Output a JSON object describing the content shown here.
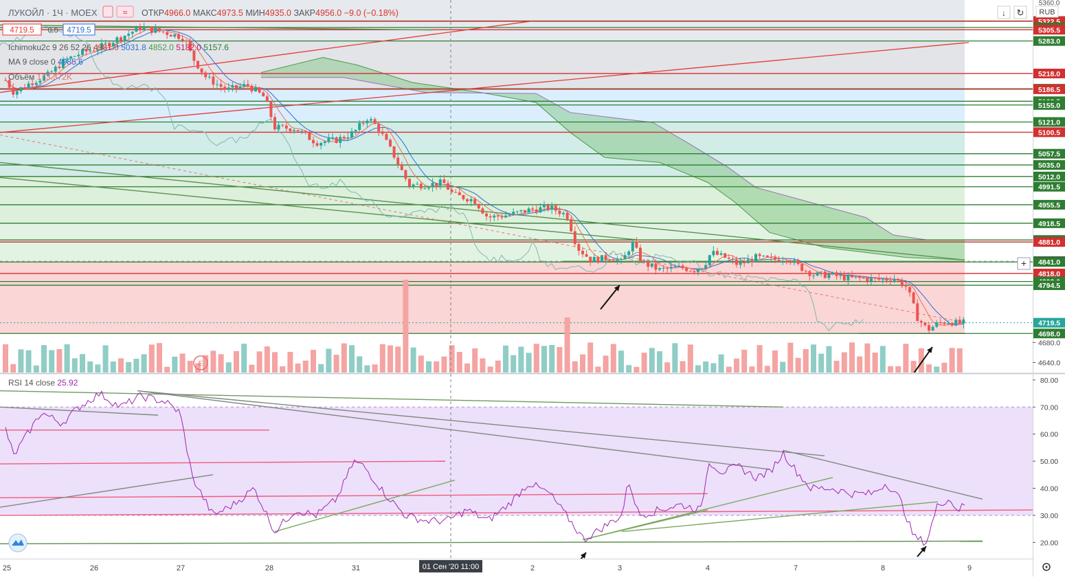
{
  "header": {
    "symbol": "ЛУКОЙЛ · 1Ч · MOEX",
    "ohlc": [
      {
        "label": "ОТКР",
        "value": "4966.0"
      },
      {
        "label": "МАКС",
        "value": "4973.5"
      },
      {
        "label": "МИН",
        "value": "4935.0"
      },
      {
        "label": "ЗАКР",
        "value": "4956.0"
      }
    ],
    "change": "−9.0 (−0.18%)",
    "bid": "4719.5",
    "spread": "0.0",
    "ask": "4719.5",
    "currency": "RUB"
  },
  "indicators": {
    "ichimoku": {
      "name": "Ichimoku2c 9 26 52 26",
      "values": [
        {
          "v": "4981.0",
          "color": "#d9342b"
        },
        {
          "v": "5031.8",
          "color": "#2e6fd6"
        },
        {
          "v": "4852.0",
          "color": "#4b9a4b"
        },
        {
          "v": "5182.0",
          "color": "#c2185b"
        },
        {
          "v": "5157.6",
          "color": "#2e7d32"
        }
      ]
    },
    "ma": {
      "name": "MA 9 close 0",
      "value": "4985.6"
    },
    "volume": {
      "name": "Объём",
      "value": "173.372K"
    },
    "rsi": {
      "name": "RSI 14 close",
      "value": "25.92"
    }
  },
  "price_axis": {
    "top_label": "5360.0",
    "levels": [
      {
        "v": 5323.0,
        "label": "5323.0",
        "color": "#2e7d32"
      },
      {
        "v": 5322.5,
        "label": "5322.5",
        "color": "#d32f2f"
      },
      {
        "v": 5310.0,
        "label": "5310.0",
        "color": "#2e7d32"
      },
      {
        "v": 5305.5,
        "label": "5305.5",
        "color": "#d32f2f"
      },
      {
        "v": 5283.0,
        "label": "5283.0",
        "color": "#2e7d32"
      },
      {
        "v": 5218.0,
        "label": "5218.0",
        "color": "#d32f2f"
      },
      {
        "v": 5187.5,
        "label": "5187.5",
        "color": "#2e7d32"
      },
      {
        "v": 5186.5,
        "label": "5186.5",
        "color": "#d32f2f"
      },
      {
        "v": 5162.5,
        "label": "5162.5",
        "color": "#2e7d32"
      },
      {
        "v": 5155.0,
        "label": "5155.0",
        "color": "#2e7d32"
      },
      {
        "v": 5121.0,
        "label": "5121.0",
        "color": "#2e7d32"
      },
      {
        "v": 5100.5,
        "label": "5100.5",
        "color": "#d32f2f"
      },
      {
        "v": 5057.5,
        "label": "5057.5",
        "color": "#2e7d32"
      },
      {
        "v": 5035.0,
        "label": "5035.0",
        "color": "#2e7d32"
      },
      {
        "v": 5012.0,
        "label": "5012.0",
        "color": "#2e7d32"
      },
      {
        "v": 4991.5,
        "label": "4991.5",
        "color": "#2e7d32"
      },
      {
        "v": 4955.5,
        "label": "4955.5",
        "color": "#2e7d32"
      },
      {
        "v": 4918.5,
        "label": "4918.5",
        "color": "#2e7d32"
      },
      {
        "v": 4885.0,
        "label": "4885.0",
        "color": "#2e7d32"
      },
      {
        "v": 4881.0,
        "label": "4881.0",
        "color": "#d32f2f"
      },
      {
        "v": 4842.5,
        "label": "4842.5",
        "color": "#3a3a3a"
      },
      {
        "v": 4841.0,
        "label": "4841.0",
        "color": "#2e7d32"
      },
      {
        "v": 4818.0,
        "label": "4818.0",
        "color": "#d32f2f"
      },
      {
        "v": 4802.0,
        "label": "4802.0",
        "color": "#2e7d32"
      },
      {
        "v": 4794.5,
        "label": "4794.5",
        "color": "#2e7d32"
      },
      {
        "v": 4719.5,
        "label": "4719.5",
        "color": "#26a69a"
      },
      {
        "v": 4698.0,
        "label": "4698.0",
        "color": "#2e7d32"
      }
    ],
    "plain_ticks": [
      "4680.0",
      "4640.0"
    ]
  },
  "rsi_axis": {
    "ticks": [
      "80.00",
      "70.00",
      "60.00",
      "50.00",
      "40.00",
      "30.00",
      "20.00"
    ]
  },
  "time_axis": {
    "labels": [
      "25",
      "26",
      "27",
      "28",
      "31",
      "2",
      "3",
      "4",
      "7",
      "8",
      "9"
    ],
    "crosshair_label": "01 Сен '20  11:00"
  },
  "chart_data": {
    "type": "candlestick",
    "interval": "1H",
    "price_range": [
      4620,
      5365
    ],
    "rsi_range": [
      14,
      82
    ],
    "last_close": 4719.5,
    "indicator_overlays": [
      "Ichimoku cloud",
      "Tenkan",
      "Kijun",
      "Chikou",
      "MA 9"
    ],
    "rsi_last": 25.92,
    "rsi_bands": [
      30,
      70
    ]
  }
}
